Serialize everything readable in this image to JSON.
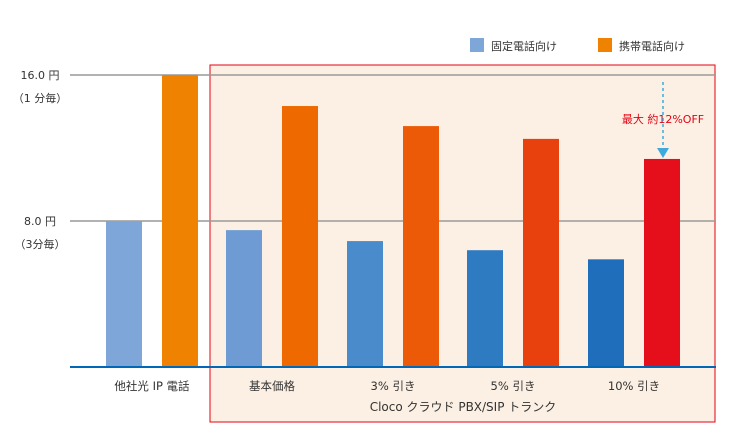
{
  "chart_data": {
    "type": "bar",
    "categories": [
      "他社光 IP 電話",
      "基本価格",
      "3% 引き",
      "5% 引き",
      "10% 引き"
    ],
    "series": [
      {
        "name": "固定電話向け",
        "values": [
          8.0,
          7.5,
          6.9,
          6.4,
          5.9
        ]
      },
      {
        "name": "携帯電話向け",
        "values": [
          16.0,
          14.3,
          13.2,
          12.5,
          11.4
        ]
      }
    ],
    "ylim": [
      0,
      16.0
    ],
    "yticks": [
      {
        "value": 16.0,
        "label": "16.0 円",
        "sublabel": "（1 分毎）"
      },
      {
        "value": 8.0,
        "label": "8.0 円",
        "sublabel": "（3分毎）"
      }
    ],
    "group_label": "Cloco クラウド PBX/SIP トランク",
    "annotation": "最大 約12%OFF",
    "legend_position": "top-right",
    "grid": true,
    "colors": {
      "fixed": [
        "#7FA6D8",
        "#6E9BD3",
        "#4A8CCB",
        "#2F7BC2",
        "#1F6EBB"
      ],
      "mobile": [
        "#EF8200",
        "#EE6A00",
        "#EC5A07",
        "#E9410D",
        "#E50F1B"
      ],
      "legend_fixed": "#7FA6D8",
      "legend_mobile": "#EF8200",
      "box_border": "#E60012",
      "box_fill": "#FCF0E4",
      "baseline": "#0068B7",
      "gridline": "#999999",
      "annotation_text": "#E60012",
      "arrow": "#3FA9DE"
    }
  }
}
